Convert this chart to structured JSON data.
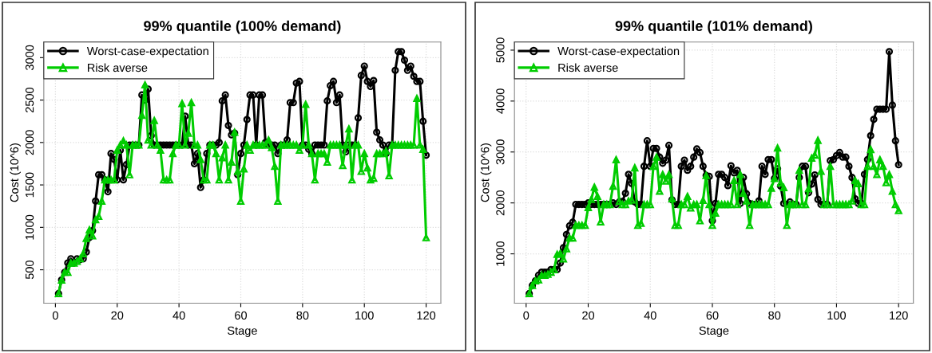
{
  "chart_data": [
    {
      "type": "line",
      "title": "99% quantile (100% demand)",
      "xlabel": "Stage",
      "ylabel": "Cost (10^6)",
      "x": [
        1,
        2,
        3,
        4,
        5,
        6,
        7,
        8,
        9,
        10,
        11,
        12,
        13,
        14,
        15,
        16,
        17,
        18,
        19,
        20,
        21,
        22,
        23,
        24,
        25,
        26,
        27,
        28,
        29,
        30,
        31,
        32,
        33,
        34,
        35,
        36,
        37,
        38,
        39,
        40,
        41,
        42,
        43,
        44,
        45,
        46,
        47,
        48,
        49,
        50,
        51,
        52,
        53,
        54,
        55,
        56,
        57,
        58,
        59,
        60,
        61,
        62,
        63,
        64,
        65,
        66,
        67,
        68,
        69,
        70,
        71,
        72,
        73,
        74,
        75,
        76,
        77,
        78,
        79,
        80,
        81,
        82,
        83,
        84,
        85,
        86,
        87,
        88,
        89,
        90,
        91,
        92,
        93,
        94,
        95,
        96,
        97,
        98,
        99,
        100,
        101,
        102,
        103,
        104,
        105,
        106,
        107,
        108,
        109,
        110,
        111,
        112,
        113,
        114,
        115,
        116,
        117,
        118,
        119,
        120
      ],
      "series": [
        {
          "name": "Worst-case-expectation",
          "color": "#000000",
          "marker": "circle",
          "values": [
            220,
            380,
            470,
            580,
            630,
            580,
            630,
            620,
            630,
            710,
            880,
            960,
            1310,
            1620,
            1620,
            1560,
            1420,
            1870,
            1800,
            1560,
            1910,
            1560,
            1740,
            1970,
            1970,
            1970,
            1970,
            2560,
            2500,
            2630,
            2080,
            1970,
            1970,
            1970,
            1970,
            1970,
            1970,
            1970,
            1970,
            1970,
            1970,
            2310,
            1970,
            1970,
            1750,
            1870,
            1470,
            1560,
            1870,
            1970,
            1970,
            1970,
            2000,
            2490,
            2560,
            2200,
            2090,
            2110,
            1620,
            1870,
            1970,
            2270,
            2560,
            2560,
            1970,
            2560,
            2560,
            2000,
            1970,
            1970,
            1970,
            1870,
            1970,
            1970,
            2030,
            2470,
            2470,
            2700,
            2720,
            1970,
            1970,
            1920,
            1870,
            1970,
            1970,
            1970,
            1970,
            2490,
            2670,
            2720,
            2470,
            2560,
            1970,
            1890,
            1970,
            1970,
            1970,
            2290,
            2790,
            2900,
            2720,
            2660,
            2730,
            2120,
            2030,
            1970,
            1870,
            1970,
            1970,
            2850,
            3070,
            3070,
            2970,
            2850,
            2900,
            2780,
            2720,
            2720,
            2250,
            1850
          ]
        },
        {
          "name": "Risk averse",
          "color": "#00cc00",
          "marker": "triangle",
          "values": [
            220,
            380,
            470,
            470,
            580,
            580,
            600,
            630,
            690,
            870,
            970,
            900,
            1090,
            1130,
            1310,
            1560,
            1560,
            1560,
            1560,
            1910,
            1970,
            2020,
            1970,
            1620,
            1970,
            1970,
            1970,
            2320,
            2680,
            2030,
            1970,
            2260,
            1970,
            1910,
            1560,
            1560,
            1560,
            1870,
            1970,
            1970,
            2460,
            1970,
            2110,
            2470,
            1970,
            1970,
            1800,
            1560,
            1560,
            1970,
            1970,
            1870,
            1560,
            1820,
            1970,
            1560,
            1770,
            2120,
            1660,
            1310,
            1690,
            1970,
            1910,
            1970,
            1970,
            1970,
            1970,
            1970,
            2030,
            1940,
            1720,
            1310,
            1970,
            1970,
            1970,
            1970,
            1970,
            1970,
            1910,
            1970,
            2450,
            1970,
            1870,
            1560,
            1870,
            1870,
            1870,
            1770,
            1970,
            1970,
            1970,
            1970,
            1730,
            1970,
            2160,
            1560,
            1970,
            1970,
            1660,
            1870,
            1700,
            1560,
            1580,
            1870,
            1870,
            1870,
            1900,
            1610,
            1970,
            1970,
            1970,
            1970,
            1970,
            1970,
            1970,
            1970,
            2520,
            1970,
            1920,
            880
          ]
        }
      ],
      "xlim": [
        -3.76,
        124.76
      ],
      "ylim": [
        106,
        3184
      ],
      "xticks": [
        0,
        20,
        40,
        60,
        80,
        100,
        120
      ],
      "yticks": [
        500,
        1000,
        1500,
        2000,
        2500,
        3000
      ],
      "grid": true,
      "legend": "top left",
      "line_style": "solid"
    },
    {
      "type": "line",
      "title": "99% quantile (101% demand)",
      "xlabel": "Stage",
      "ylabel": "Cost (10^6)",
      "x": [
        1,
        2,
        3,
        4,
        5,
        6,
        7,
        8,
        9,
        10,
        11,
        12,
        13,
        14,
        15,
        16,
        17,
        18,
        19,
        20,
        21,
        22,
        23,
        24,
        25,
        26,
        27,
        28,
        29,
        30,
        31,
        32,
        33,
        34,
        35,
        36,
        37,
        38,
        39,
        40,
        41,
        42,
        43,
        44,
        45,
        46,
        47,
        48,
        49,
        50,
        51,
        52,
        53,
        54,
        55,
        56,
        57,
        58,
        59,
        60,
        61,
        62,
        63,
        64,
        65,
        66,
        67,
        68,
        69,
        70,
        71,
        72,
        73,
        74,
        75,
        76,
        77,
        78,
        79,
        80,
        81,
        82,
        83,
        84,
        85,
        86,
        87,
        88,
        89,
        90,
        91,
        92,
        93,
        94,
        95,
        96,
        97,
        98,
        99,
        100,
        101,
        102,
        103,
        104,
        105,
        106,
        107,
        108,
        109,
        110,
        111,
        112,
        113,
        114,
        115,
        116,
        117,
        118,
        119,
        120
      ],
      "series": [
        {
          "name": "Worst-case-expectation",
          "color": "#000000",
          "marker": "circle",
          "values": [
            220,
            380,
            470,
            580,
            640,
            640,
            640,
            690,
            690,
            690,
            820,
            1120,
            1380,
            1550,
            1620,
            1970,
            1970,
            1970,
            1970,
            2000,
            1970,
            1970,
            1970,
            1970,
            1970,
            1970,
            1970,
            2000,
            1970,
            2020,
            2030,
            2190,
            2560,
            2380,
            2020,
            1970,
            1970,
            2720,
            3220,
            2720,
            3070,
            3070,
            2900,
            2780,
            2840,
            3130,
            2060,
            1970,
            1970,
            2720,
            2840,
            2640,
            2720,
            2900,
            3060,
            2990,
            2720,
            2540,
            2520,
            1650,
            1990,
            2560,
            2560,
            2500,
            2340,
            2730,
            2590,
            2640,
            1990,
            2500,
            2180,
            1990,
            1970,
            1970,
            2040,
            2720,
            2560,
            2850,
            2850,
            2480,
            2670,
            2330,
            1990,
            1970,
            2020,
            1970,
            1970,
            2500,
            2720,
            2720,
            2200,
            2370,
            2550,
            2070,
            1970,
            1970,
            1970,
            2830,
            2850,
            2930,
            2990,
            2900,
            2900,
            2720,
            2500,
            2080,
            1990,
            1990,
            2560,
            2850,
            3320,
            3640,
            3840,
            3840,
            3840,
            3840,
            4970,
            3920,
            3220,
            2750
          ]
        },
        {
          "name": "Risk averse",
          "color": "#00cc00",
          "marker": "triangle",
          "values": [
            220,
            380,
            470,
            490,
            580,
            580,
            600,
            640,
            690,
            990,
            1010,
            900,
            1100,
            1310,
            1310,
            1560,
            1560,
            1560,
            1560,
            1910,
            2070,
            2310,
            2130,
            1630,
            1970,
            1970,
            1970,
            2330,
            2850,
            2030,
            1970,
            1970,
            2040,
            2060,
            2690,
            1560,
            1600,
            1970,
            1970,
            1970,
            2720,
            2900,
            2230,
            2560,
            2430,
            2560,
            2080,
            1560,
            1560,
            1970,
            1970,
            2130,
            1900,
            1970,
            1970,
            1650,
            2050,
            2540,
            1970,
            1560,
            1800,
            1970,
            1970,
            1970,
            1970,
            1970,
            2440,
            1970,
            2560,
            2190,
            2040,
            1560,
            1970,
            1970,
            1970,
            1970,
            1970,
            1970,
            2290,
            2480,
            3080,
            2390,
            2300,
            1560,
            1970,
            1970,
            1970,
            2640,
            1970,
            1970,
            2280,
            2880,
            2940,
            3230,
            2620,
            1970,
            1970,
            2720,
            1970,
            1970,
            1970,
            1970,
            1970,
            1970,
            2040,
            2440,
            2380,
            1970,
            1970,
            2720,
            3050,
            2720,
            2560,
            2850,
            2720,
            2400,
            2560,
            2230,
            1970,
            1850
          ]
        }
      ],
      "xlim": [
        -3.76,
        124.76
      ],
      "ylim": [
        30,
        5160
      ],
      "xticks": [
        0,
        20,
        40,
        60,
        80,
        100,
        120
      ],
      "yticks": [
        1000,
        2000,
        3000,
        4000,
        5000
      ],
      "grid": true,
      "legend": "top left",
      "line_style": "solid"
    }
  ]
}
